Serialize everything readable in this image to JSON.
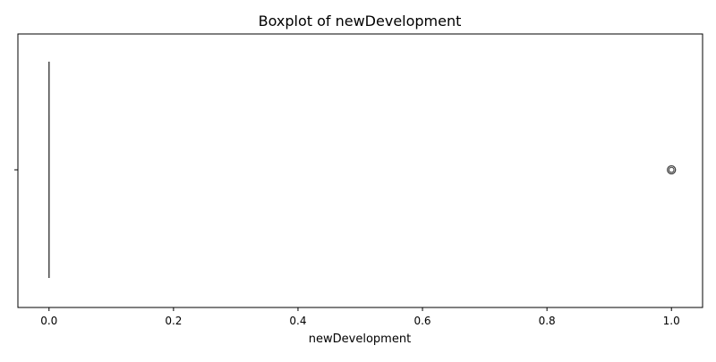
{
  "chart_data": {
    "type": "boxplot",
    "title": "Boxplot of newDevelopment",
    "xlabel": "newDevelopment",
    "ylabel": "",
    "orientation": "horizontal",
    "xlim": [
      -0.05,
      1.05
    ],
    "xticks": [
      0.0,
      0.2,
      0.4,
      0.6,
      0.8,
      1.0
    ],
    "xtick_labels": [
      "0.0",
      "0.2",
      "0.4",
      "0.6",
      "0.8",
      "1.0"
    ],
    "grid": false,
    "box": {
      "q1": 0.0,
      "median": 0.0,
      "q3": 0.0,
      "whisker_low": 0.0,
      "whisker_high": 0.0
    },
    "outliers": [
      1.0
    ],
    "box_color": "#4c4c4c",
    "whisker_color": "#4c4c4c",
    "outlier_edge_color": "#3d3d3d"
  }
}
